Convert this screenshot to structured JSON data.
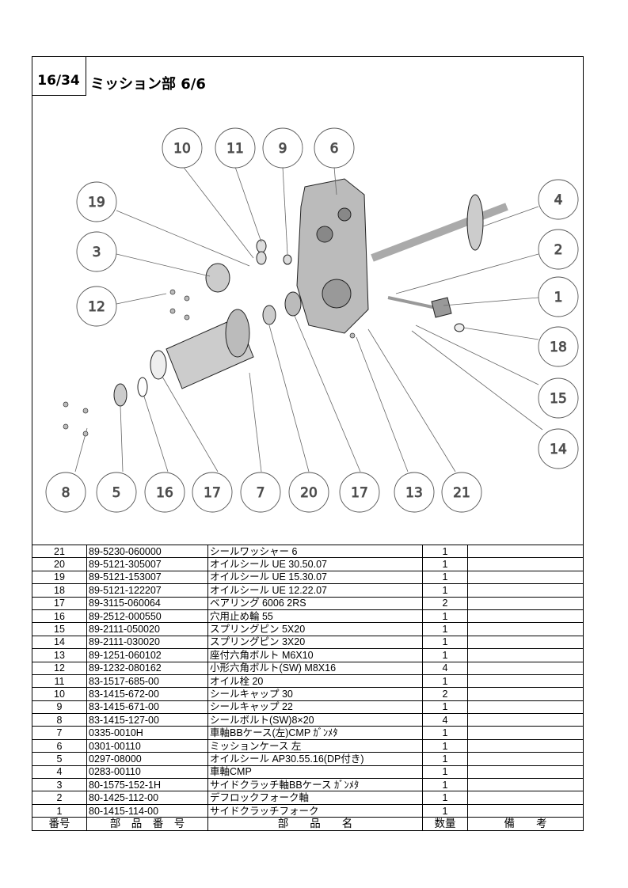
{
  "header": {
    "page": "16/34",
    "title": "ミッション部  6/6"
  },
  "diagram": {
    "callouts": [
      "10",
      "11",
      "9",
      "6",
      "19",
      "4",
      "3",
      "2",
      "12",
      "1",
      "18",
      "15",
      "14",
      "8",
      "5",
      "16",
      "17",
      "7",
      "20",
      "17",
      "13",
      "21"
    ]
  },
  "table": {
    "columns": {
      "no": "番号",
      "part_no": "部　品　番　号",
      "name": "部　　品　　名",
      "qty": "数量",
      "remarks": "備　　考"
    },
    "rows": [
      {
        "no": "21",
        "part_no": "89-5230-060000",
        "name": "シールワッシャー  6",
        "qty": "1",
        "remarks": ""
      },
      {
        "no": "20",
        "part_no": "89-5121-305007",
        "name": "オイルシール UE 30.50.07",
        "qty": "1",
        "remarks": ""
      },
      {
        "no": "19",
        "part_no": "89-5121-153007",
        "name": "オイルシール UE 15.30.07",
        "qty": "1",
        "remarks": ""
      },
      {
        "no": "18",
        "part_no": "89-5121-122207",
        "name": "オイルシール UE 12.22.07",
        "qty": "1",
        "remarks": ""
      },
      {
        "no": "17",
        "part_no": "89-3115-060064",
        "name": "ベアリング  6006 2RS",
        "qty": "2",
        "remarks": ""
      },
      {
        "no": "16",
        "part_no": "89-2512-000550",
        "name": "穴用止め輪  55",
        "qty": "1",
        "remarks": ""
      },
      {
        "no": "15",
        "part_no": "89-2111-050020",
        "name": "スプリングピン  5X20",
        "qty": "1",
        "remarks": ""
      },
      {
        "no": "14",
        "part_no": "89-2111-030020",
        "name": "スプリングピン  3X20",
        "qty": "1",
        "remarks": ""
      },
      {
        "no": "13",
        "part_no": "89-1251-060102",
        "name": "座付六角ボルト M6X10",
        "qty": "1",
        "remarks": ""
      },
      {
        "no": "12",
        "part_no": "89-1232-080162",
        "name": "小形六角ボルト(SW)  M8X16",
        "qty": "4",
        "remarks": ""
      },
      {
        "no": "11",
        "part_no": "83-1517-685-00",
        "name": "オイル栓  20",
        "qty": "1",
        "remarks": ""
      },
      {
        "no": "10",
        "part_no": "83-1415-672-00",
        "name": "シールキャップ  30",
        "qty": "2",
        "remarks": ""
      },
      {
        "no": "9",
        "part_no": "83-1415-671-00",
        "name": "シールキャップ  22",
        "qty": "1",
        "remarks": ""
      },
      {
        "no": "8",
        "part_no": "83-1415-127-00",
        "name": "シールボルト(SW)8×20",
        "qty": "4",
        "remarks": ""
      },
      {
        "no": "7",
        "part_no": "0335-0010H",
        "name": "車軸BBケース(左)CMP  ｶﾞﾝﾒﾀ",
        "qty": "1",
        "remarks": ""
      },
      {
        "no": "6",
        "part_no": "0301-00110",
        "name": "ミッションケース  左",
        "qty": "1",
        "remarks": ""
      },
      {
        "no": "5",
        "part_no": "0297-08000",
        "name": "オイルシール  AP30.55.16(DP付き)",
        "qty": "1",
        "remarks": ""
      },
      {
        "no": "4",
        "part_no": "0283-00110",
        "name": "車軸CMP",
        "qty": "1",
        "remarks": ""
      },
      {
        "no": "3",
        "part_no": "80-1575-152-1H",
        "name": "サイドクラッチ軸BBケース  ｶﾞﾝﾒﾀ",
        "qty": "1",
        "remarks": ""
      },
      {
        "no": "2",
        "part_no": "80-1425-112-00",
        "name": "デフロックフォーク軸",
        "qty": "1",
        "remarks": ""
      },
      {
        "no": "1",
        "part_no": "80-1415-114-00",
        "name": "サイドクラッチフォーク",
        "qty": "1",
        "remarks": ""
      }
    ]
  }
}
